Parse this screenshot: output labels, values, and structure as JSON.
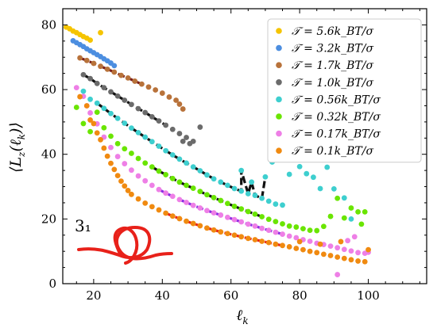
{
  "chart_data": {
    "type": "scatter",
    "xlabel": "ℓ_k",
    "ylabel": "⟨L_z(ℓ_k)⟩",
    "xlim": [
      11,
      117
    ],
    "ylim": [
      0,
      85
    ],
    "xticks": [
      "20",
      "40",
      "60",
      "80",
      "100"
    ],
    "xtick_values": [
      20,
      40,
      60,
      80,
      100
    ],
    "yticks": [
      "0",
      "20",
      "40",
      "60",
      "80"
    ],
    "ytick_values": [
      0,
      20,
      40,
      60,
      80
    ],
    "legend_position": "top-right",
    "annotation": "3₁",
    "series": [
      {
        "name": "𝒯 = 5.6k_BT/σ",
        "color": "#f5c400",
        "points": [
          [
            12,
            79.3
          ],
          [
            13,
            78.8
          ],
          [
            14,
            78.1
          ],
          [
            15,
            77.6
          ],
          [
            16,
            77.0
          ],
          [
            17,
            76.4
          ],
          [
            18,
            75.9
          ],
          [
            19,
            75.3
          ],
          [
            22,
            77.6
          ]
        ],
        "fit": null
      },
      {
        "name": "𝒯 = 3.2k_BT/σ",
        "color": "#4c8ee0",
        "points": [
          [
            14,
            75.1
          ],
          [
            15,
            74.5
          ],
          [
            16,
            73.9
          ],
          [
            17,
            73.3
          ],
          [
            18,
            72.6
          ],
          [
            19,
            72.0
          ],
          [
            20,
            71.4
          ],
          [
            21,
            70.8
          ],
          [
            22,
            70.2
          ],
          [
            23,
            69.5
          ],
          [
            24,
            68.9
          ],
          [
            25,
            68.2
          ],
          [
            26,
            67.4
          ]
        ],
        "fit": {
          "from": 14,
          "to": 26,
          "color": "#1f2dd8"
        }
      },
      {
        "name": "𝒯 = 1.7k_BT/σ",
        "color": "#b8723a",
        "points": [
          [
            16,
            69.8
          ],
          [
            18,
            69.0
          ],
          [
            20,
            68.1
          ],
          [
            22,
            67.2
          ],
          [
            24,
            66.3
          ],
          [
            26,
            65.4
          ],
          [
            28,
            64.4
          ],
          [
            30,
            63.6
          ],
          [
            32,
            62.6
          ],
          [
            34,
            61.7
          ],
          [
            36,
            60.8
          ],
          [
            38,
            59.9
          ],
          [
            40,
            58.9
          ],
          [
            42,
            57.7
          ],
          [
            44,
            56.7
          ],
          [
            45,
            55.5
          ],
          [
            46,
            54.0
          ]
        ],
        "fit": {
          "from": 16,
          "to": 36,
          "color": "#7a1d18"
        }
      },
      {
        "name": "𝒯 = 1.0k_BT/σ",
        "color": "#6b6b6b",
        "points": [
          [
            17,
            64.6
          ],
          [
            19,
            63.4
          ],
          [
            21,
            61.9
          ],
          [
            23,
            60.6
          ],
          [
            25,
            59.3
          ],
          [
            27,
            58.0
          ],
          [
            29,
            56.7
          ],
          [
            31,
            55.4
          ],
          [
            33,
            54.1
          ],
          [
            35,
            52.9
          ],
          [
            37,
            51.6
          ],
          [
            39,
            50.3
          ],
          [
            41,
            49.0
          ],
          [
            43,
            47.7
          ],
          [
            45,
            46.4
          ],
          [
            47,
            45.2
          ],
          [
            49,
            44.0
          ],
          [
            51,
            48.4
          ],
          [
            46,
            44.0
          ],
          [
            48,
            43.3
          ]
        ],
        "fit": {
          "from": 17,
          "to": 41,
          "color": "#111111"
        }
      },
      {
        "name": "𝒯 = 0.56k_BT/σ",
        "color": "#3ecfcf",
        "points": [
          [
            17,
            59.5
          ],
          [
            19,
            57.0
          ],
          [
            21,
            55.8
          ],
          [
            23,
            54.2
          ],
          [
            25,
            52.6
          ],
          [
            27,
            51.1
          ],
          [
            29,
            49.6
          ],
          [
            31,
            48.1
          ],
          [
            33,
            46.7
          ],
          [
            35,
            45.3
          ],
          [
            37,
            43.9
          ],
          [
            39,
            42.5
          ],
          [
            41,
            41.1
          ],
          [
            43,
            39.8
          ],
          [
            45,
            38.5
          ],
          [
            47,
            37.3
          ],
          [
            49,
            36.1
          ],
          [
            51,
            34.9
          ],
          [
            53,
            33.6
          ],
          [
            55,
            32.4
          ],
          [
            57,
            31.4
          ],
          [
            59,
            30.4
          ],
          [
            61,
            29.4
          ],
          [
            63,
            28.6
          ],
          [
            65,
            27.8
          ],
          [
            67,
            27.3
          ],
          [
            69,
            26.4
          ],
          [
            71,
            25.5
          ],
          [
            73,
            24.6
          ],
          [
            75,
            24.3
          ],
          [
            63,
            35.0
          ],
          [
            66,
            31.4
          ],
          [
            70,
            33.0
          ],
          [
            72,
            37.6
          ],
          [
            77,
            33.8
          ],
          [
            80,
            36.2
          ],
          [
            82,
            34.0
          ],
          [
            84,
            32.9
          ],
          [
            86,
            29.4
          ],
          [
            88,
            36.0
          ],
          [
            90,
            29.3
          ],
          [
            93,
            26.5
          ],
          [
            95,
            20.0
          ]
        ],
        "fit": {
          "from": 21,
          "to": 70,
          "color": "#111111"
        }
      },
      {
        "name": "𝒯 = 0.32k_BT/σ",
        "color": "#6ae500",
        "points": [
          [
            15,
            54.5
          ],
          [
            17,
            49.5
          ],
          [
            19,
            47.0
          ],
          [
            21,
            53.0
          ],
          [
            23,
            48.2
          ],
          [
            25,
            45.6
          ],
          [
            27,
            43.3
          ],
          [
            29,
            41.7
          ],
          [
            31,
            40.3
          ],
          [
            33,
            38.7
          ],
          [
            35,
            37.3
          ],
          [
            37,
            36.1
          ],
          [
            39,
            34.8
          ],
          [
            41,
            33.7
          ],
          [
            43,
            32.5
          ],
          [
            45,
            31.4
          ],
          [
            47,
            30.4
          ],
          [
            49,
            29.5
          ],
          [
            51,
            28.5
          ],
          [
            53,
            27.5
          ],
          [
            55,
            26.6
          ],
          [
            57,
            25.7
          ],
          [
            59,
            24.8
          ],
          [
            61,
            23.9
          ],
          [
            63,
            23.1
          ],
          [
            65,
            22.3
          ],
          [
            67,
            21.5
          ],
          [
            69,
            20.7
          ],
          [
            71,
            19.9
          ],
          [
            73,
            19.2
          ],
          [
            75,
            18.5
          ],
          [
            77,
            17.8
          ],
          [
            79,
            17.5
          ],
          [
            81,
            17.0
          ],
          [
            83,
            16.5
          ],
          [
            85,
            16.4
          ],
          [
            87,
            17.7
          ],
          [
            89,
            20.8
          ],
          [
            91,
            26.4
          ],
          [
            93,
            20.3
          ],
          [
            95,
            23.4
          ],
          [
            97,
            22.2
          ],
          [
            99,
            22.2
          ],
          [
            98,
            18.4
          ]
        ],
        "fit": {
          "from": 36,
          "to": 70,
          "color": "#111111"
        }
      },
      {
        "name": "𝒯 = 0.17k_BT/σ",
        "color": "#ee7fe6",
        "points": [
          [
            15,
            60.6
          ],
          [
            17,
            57.9
          ],
          [
            18,
            55.0
          ],
          [
            19,
            52.8
          ],
          [
            21,
            49.4
          ],
          [
            23,
            45.3
          ],
          [
            25,
            42.1
          ],
          [
            27,
            39.3
          ],
          [
            29,
            37.1
          ],
          [
            31,
            35.1
          ],
          [
            33,
            33.3
          ],
          [
            35,
            31.8
          ],
          [
            37,
            30.4
          ],
          [
            39,
            29.1
          ],
          [
            41,
            28.0
          ],
          [
            43,
            27.0
          ],
          [
            45,
            26.0
          ],
          [
            47,
            25.1
          ],
          [
            49,
            24.2
          ],
          [
            51,
            23.4
          ],
          [
            53,
            22.6
          ],
          [
            55,
            21.9
          ],
          [
            57,
            21.2
          ],
          [
            59,
            20.5
          ],
          [
            61,
            19.8
          ],
          [
            63,
            19.1
          ],
          [
            65,
            18.4
          ],
          [
            67,
            17.8
          ],
          [
            69,
            17.1
          ],
          [
            71,
            16.5
          ],
          [
            73,
            15.9
          ],
          [
            75,
            15.3
          ],
          [
            77,
            14.7
          ],
          [
            79,
            14.2
          ],
          [
            81,
            13.6
          ],
          [
            83,
            13.1
          ],
          [
            85,
            12.5
          ],
          [
            87,
            12.1
          ],
          [
            89,
            11.6
          ],
          [
            91,
            11.1
          ],
          [
            93,
            10.6
          ],
          [
            95,
            10.1
          ],
          [
            97,
            9.6
          ],
          [
            99,
            9.4
          ],
          [
            91,
            2.8
          ],
          [
            94,
            13.3
          ],
          [
            96,
            14.5
          ],
          [
            100,
            9.7
          ]
        ],
        "fit": {
          "from": 38,
          "to": 76,
          "color": "#8a2be2"
        }
      },
      {
        "name": "𝒯 = 0.1k_BT/σ",
        "color": "#f08a10",
        "points": [
          [
            16,
            57.8
          ],
          [
            18,
            55.0
          ],
          [
            19,
            50.6
          ],
          [
            20,
            49.5
          ],
          [
            21,
            46.6
          ],
          [
            22,
            44.5
          ],
          [
            23,
            41.9
          ],
          [
            24,
            39.4
          ],
          [
            25,
            37.2
          ],
          [
            26,
            35.3
          ],
          [
            27,
            33.4
          ],
          [
            28,
            31.7
          ],
          [
            29,
            30.2
          ],
          [
            30,
            28.8
          ],
          [
            31,
            27.6
          ],
          [
            33,
            26.2
          ],
          [
            35,
            24.9
          ],
          [
            37,
            23.8
          ],
          [
            39,
            22.8
          ],
          [
            41,
            21.8
          ],
          [
            43,
            20.9
          ],
          [
            45,
            20.1
          ],
          [
            47,
            19.3
          ],
          [
            49,
            18.6
          ],
          [
            51,
            17.9
          ],
          [
            53,
            17.2
          ],
          [
            55,
            16.6
          ],
          [
            57,
            16.0
          ],
          [
            59,
            15.5
          ],
          [
            61,
            15.0
          ],
          [
            63,
            14.5
          ],
          [
            65,
            14.0
          ],
          [
            67,
            13.6
          ],
          [
            69,
            13.1
          ],
          [
            71,
            12.7
          ],
          [
            73,
            12.2
          ],
          [
            75,
            11.8
          ],
          [
            77,
            11.4
          ],
          [
            79,
            10.9
          ],
          [
            81,
            10.5
          ],
          [
            83,
            10.0
          ],
          [
            85,
            9.6
          ],
          [
            87,
            9.1
          ],
          [
            89,
            8.7
          ],
          [
            91,
            8.2
          ],
          [
            93,
            7.8
          ],
          [
            95,
            7.4
          ],
          [
            97,
            7.0
          ],
          [
            99,
            6.8
          ],
          [
            80,
            13.0
          ],
          [
            86,
            12.2
          ],
          [
            92,
            13.0
          ],
          [
            100,
            10.5
          ]
        ],
        "fit": {
          "from": 40,
          "to": 76,
          "color": "#e8211a"
        }
      }
    ]
  }
}
